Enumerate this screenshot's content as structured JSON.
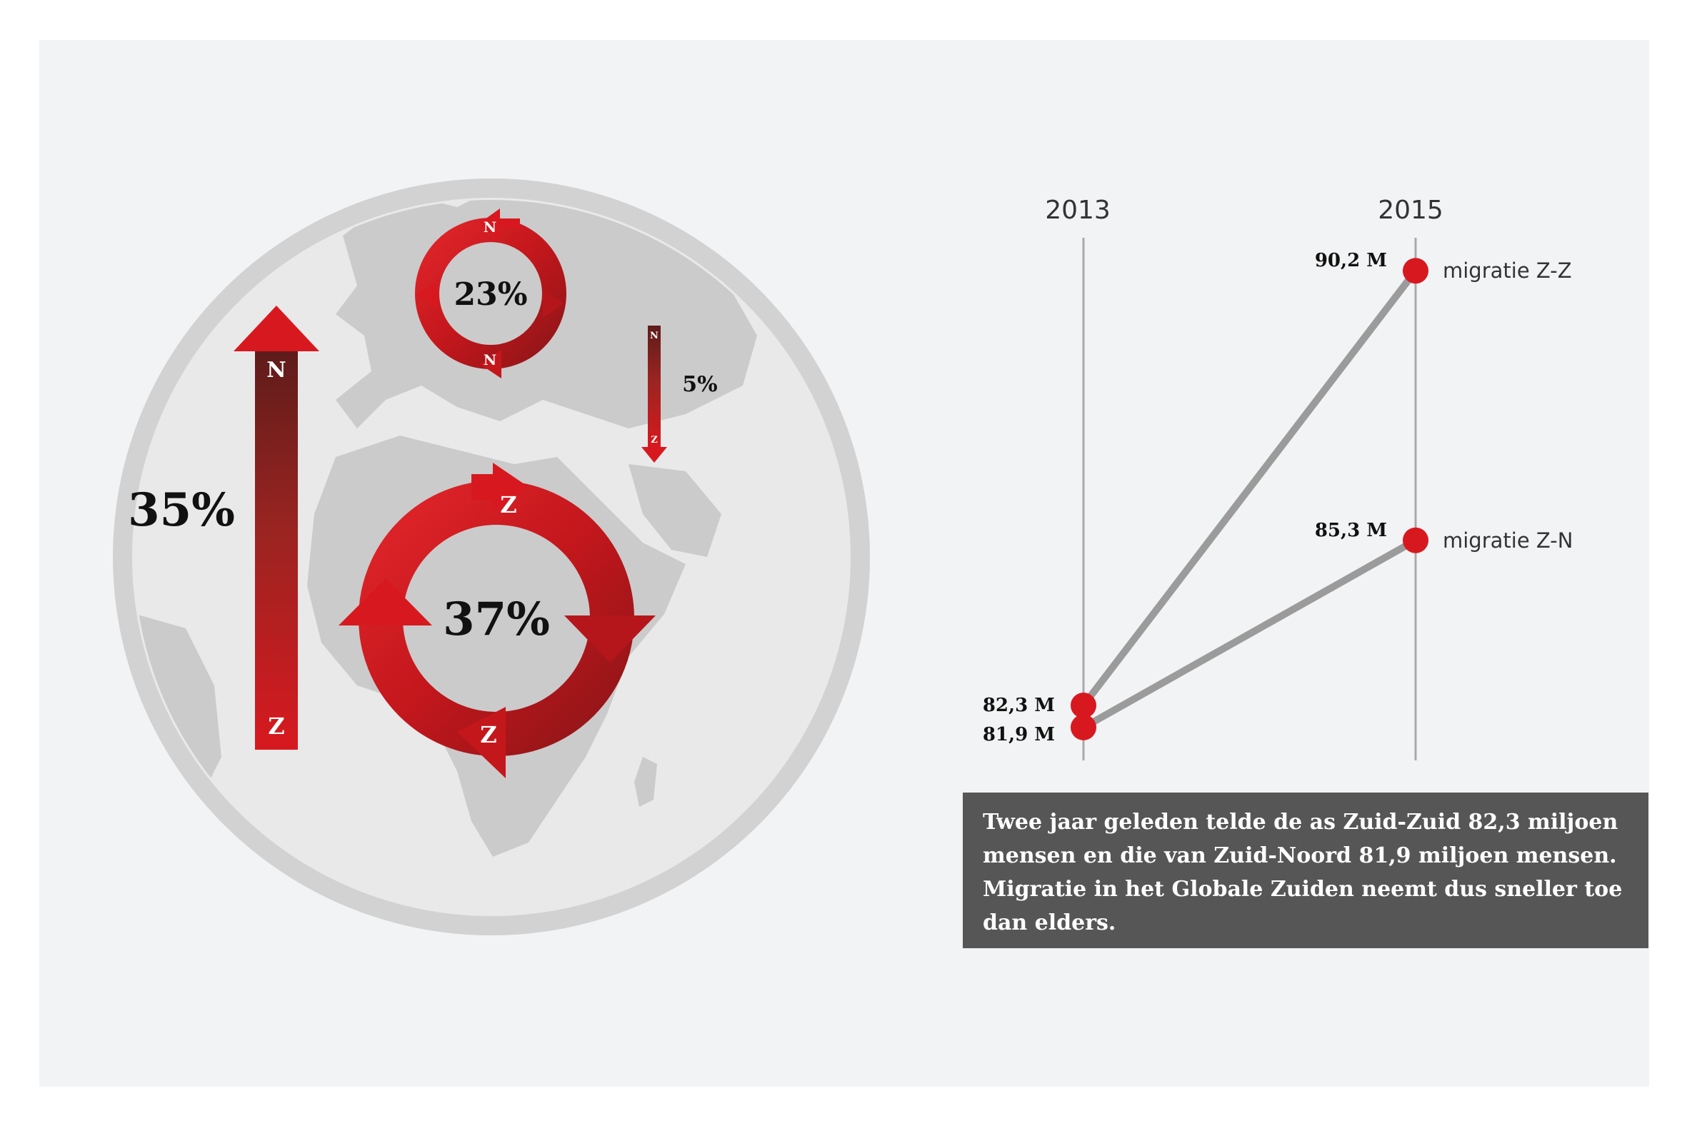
{
  "flows": {
    "north_north": {
      "percent": "23%",
      "from": "N",
      "to": "N",
      "color": "#d7191f"
    },
    "south_north": {
      "percent": "35%",
      "top": "N",
      "bottom": "Z",
      "color": "#d7191f"
    },
    "north_south": {
      "percent": "5%",
      "top": "N",
      "bottom": "Z",
      "color": "#d7191f"
    },
    "south_south": {
      "percent": "37%",
      "from": "Z",
      "to": "Z",
      "color": "#d7191f"
    }
  },
  "chart_data": {
    "type": "line",
    "title": "",
    "xlabel": "",
    "ylabel": "",
    "categories": [
      "2013",
      "2015"
    ],
    "series": [
      {
        "name": "migratie Z-Z",
        "values": [
          82.3,
          90.2
        ],
        "labels": [
          "82,3 M",
          "90,2 M"
        ]
      },
      {
        "name": "migratie Z-N",
        "values": [
          81.9,
          85.3
        ],
        "labels": [
          "81,9 M",
          "85,3 M"
        ]
      }
    ],
    "ylim": [
      81.3,
      90.8
    ],
    "grid": false,
    "legend": "direct labels at right",
    "line_color": "#9b9b9b",
    "marker_color": "#d7191f"
  },
  "note": "Twee jaar geleden telde de as Zuid-Zuid 82,3 miljoen mensen en die van Zuid-Noord 81,9 miljoen mensen. Migratie in het Globale Zuiden neemt dus sneller toe dan elders."
}
